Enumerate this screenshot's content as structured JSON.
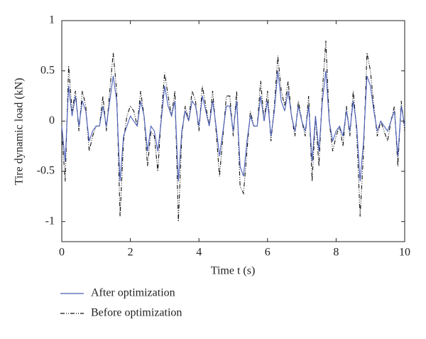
{
  "chart_data": {
    "type": "line",
    "xlabel": "Time t (s)",
    "ylabel": "Tire dynamic load (kN)",
    "x": [
      0,
      0.1,
      0.2,
      0.3,
      0.4,
      0.5,
      0.6,
      0.7,
      0.8,
      0.9,
      1,
      1.1,
      1.2,
      1.3,
      1.4,
      1.5,
      1.6,
      1.7,
      1.8,
      1.9,
      2,
      2.1,
      2.2,
      2.3,
      2.4,
      2.5,
      2.6,
      2.7,
      2.8,
      2.9,
      3,
      3.1,
      3.2,
      3.3,
      3.4,
      3.5,
      3.6,
      3.7,
      3.8,
      3.9,
      4,
      4.1,
      4.2,
      4.3,
      4.4,
      4.5,
      4.6,
      4.7,
      4.8,
      4.9,
      5,
      5.1,
      5.2,
      5.3,
      5.4,
      5.5,
      5.6,
      5.7,
      5.8,
      5.9,
      6,
      6.1,
      6.2,
      6.3,
      6.4,
      6.5,
      6.6,
      6.7,
      6.8,
      6.9,
      7,
      7.1,
      7.2,
      7.3,
      7.4,
      7.5,
      7.6,
      7.7,
      7.8,
      7.9,
      8,
      8.1,
      8.2,
      8.3,
      8.4,
      8.5,
      8.6,
      8.7,
      8.8,
      8.9,
      9,
      9.1,
      9.2,
      9.3,
      9.4,
      9.5,
      9.6,
      9.7,
      9.8,
      9.9,
      10
    ],
    "series": [
      {
        "name": "After optimization",
        "color": "#4a5fb8",
        "dash": "none",
        "values": [
          -0.05,
          -0.4,
          0.35,
          0.05,
          0.25,
          -0.05,
          0.2,
          0.1,
          -0.2,
          -0.1,
          -0.05,
          -0.05,
          0.15,
          -0.05,
          0.2,
          0.45,
          0.2,
          -0.6,
          -0.15,
          -0.05,
          0.05,
          0,
          -0.05,
          0.2,
          0.05,
          -0.3,
          -0.05,
          -0.1,
          -0.3,
          0,
          0.35,
          0.15,
          0.05,
          0.2,
          -0.6,
          -0.1,
          0.1,
          0,
          0.2,
          0.15,
          -0.05,
          0.25,
          0.1,
          -0.05,
          0.2,
          -0.05,
          -0.35,
          -0.1,
          0.15,
          0.15,
          -0.1,
          0.2,
          -0.45,
          -0.55,
          -0.2,
          0.05,
          -0.05,
          -0.05,
          0.25,
          0,
          0.2,
          -0.15,
          0.1,
          0.5,
          0.2,
          0.1,
          0.3,
          0.05,
          -0.1,
          0.15,
          0,
          -0.1,
          0.15,
          -0.4,
          0.05,
          -0.3,
          0.2,
          0.5,
          0,
          -0.2,
          -0.1,
          -0.05,
          -0.15,
          0.1,
          -0.1,
          0.2,
          -0.05,
          -0.6,
          -0.2,
          0.45,
          0.35,
          0.1,
          -0.1,
          0,
          -0.05,
          -0.1,
          0,
          0.1,
          -0.35,
          0.15,
          -0.05
        ]
      },
      {
        "name": "Before optimization",
        "color": "#111111",
        "dash": "6,2,1,2,1,2",
        "values": [
          -0.1,
          -0.6,
          0.55,
          0.1,
          0.3,
          -0.1,
          0.3,
          0.15,
          -0.3,
          -0.15,
          -0.05,
          -0.05,
          0.25,
          -0.1,
          0.3,
          0.68,
          0.3,
          -0.95,
          -0.2,
          0.05,
          0.15,
          0.1,
          -0.05,
          0.3,
          0.05,
          -0.45,
          -0.1,
          -0.15,
          -0.5,
          0.05,
          0.48,
          0.25,
          0.05,
          0.3,
          -1,
          -0.15,
          0.15,
          0,
          0.3,
          0.2,
          -0.1,
          0.35,
          0.15,
          -0.05,
          0.3,
          -0.1,
          -0.55,
          -0.15,
          0.25,
          0.25,
          -0.15,
          0.3,
          -0.65,
          -0.72,
          -0.3,
          0.1,
          -0.05,
          -0.05,
          0.4,
          0,
          0.3,
          -0.2,
          0.15,
          0.65,
          0.3,
          0.15,
          0.4,
          0.05,
          -0.15,
          0.2,
          0,
          -0.15,
          0.25,
          -0.6,
          0.05,
          -0.45,
          0.3,
          0.8,
          0,
          -0.3,
          -0.15,
          -0.05,
          -0.25,
          0.15,
          -0.15,
          0.3,
          -0.1,
          -0.95,
          -0.3,
          0.68,
          0.5,
          0.15,
          -0.15,
          0,
          -0.1,
          -0.2,
          0,
          0.15,
          -0.45,
          0.2,
          -0.1
        ]
      }
    ],
    "xlim": [
      0,
      10
    ],
    "ylim": [
      -1.2,
      1
    ],
    "xticks": [
      0,
      2,
      4,
      6,
      8,
      10
    ],
    "yticks": [
      -1,
      -0.5,
      0,
      0.5,
      1
    ]
  }
}
